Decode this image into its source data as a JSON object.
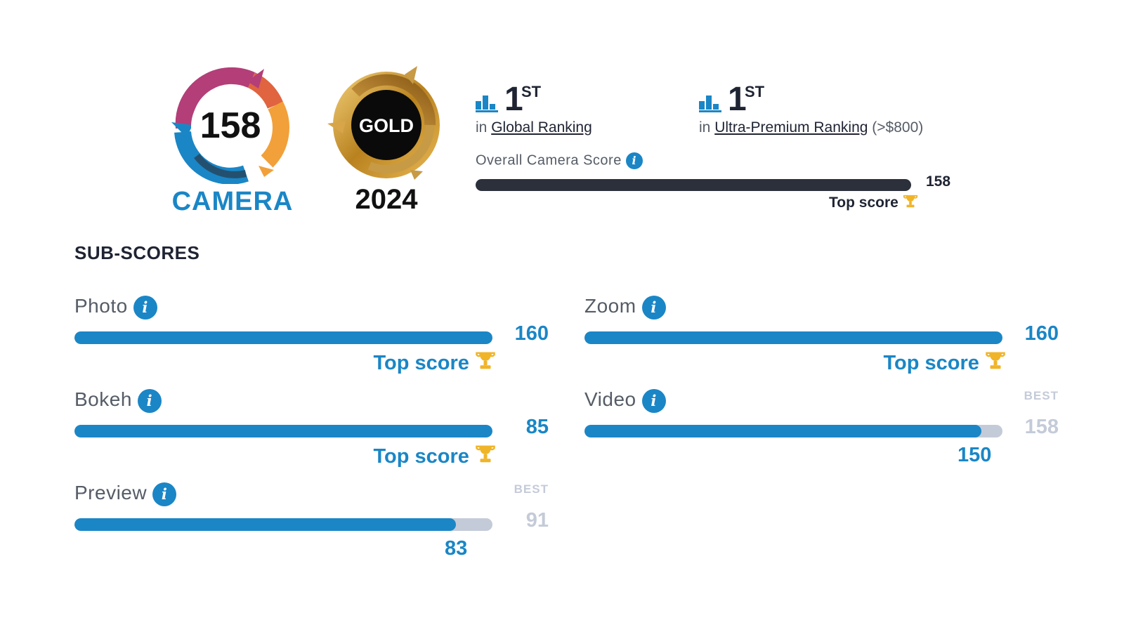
{
  "badges": {
    "camera": {
      "score": "158",
      "caption": "CAMERA"
    },
    "gold": {
      "label": "GOLD",
      "year": "2024"
    }
  },
  "rankings": [
    {
      "rank": "1",
      "suffix": "ST",
      "prefix": "in",
      "link": "Global Ranking",
      "extra": ""
    },
    {
      "rank": "1",
      "suffix": "ST",
      "prefix": "in",
      "link": "Ultra-Premium Ranking",
      "extra": "(>$800)"
    }
  ],
  "overall": {
    "label": "Overall Camera Score",
    "value": "158",
    "fraction": 1.0,
    "top_label": "Top score"
  },
  "section_title": "SUB-SCORES",
  "subscores": {
    "photo": {
      "label": "Photo",
      "value": "160",
      "fraction": 1.0,
      "top_label": "Top score"
    },
    "zoom": {
      "label": "Zoom",
      "value": "160",
      "fraction": 1.0,
      "top_label": "Top score"
    },
    "bokeh": {
      "label": "Bokeh",
      "value": "85",
      "fraction": 1.0,
      "top_label": "Top score"
    },
    "video": {
      "label": "Video",
      "value": "150",
      "best": "158",
      "best_label": "BEST",
      "fraction": 0.949
    },
    "preview": {
      "label": "Preview",
      "value": "83",
      "best": "91",
      "best_label": "BEST",
      "fraction": 0.912
    }
  },
  "icons": {
    "info": "info-icon",
    "trophy": "trophy-icon",
    "ranking": "bar-chart-icon"
  },
  "colors": {
    "accent": "#1a86c6",
    "dark": "#2b303b",
    "track": "#c4cbd8",
    "gold": "#f0b429"
  }
}
